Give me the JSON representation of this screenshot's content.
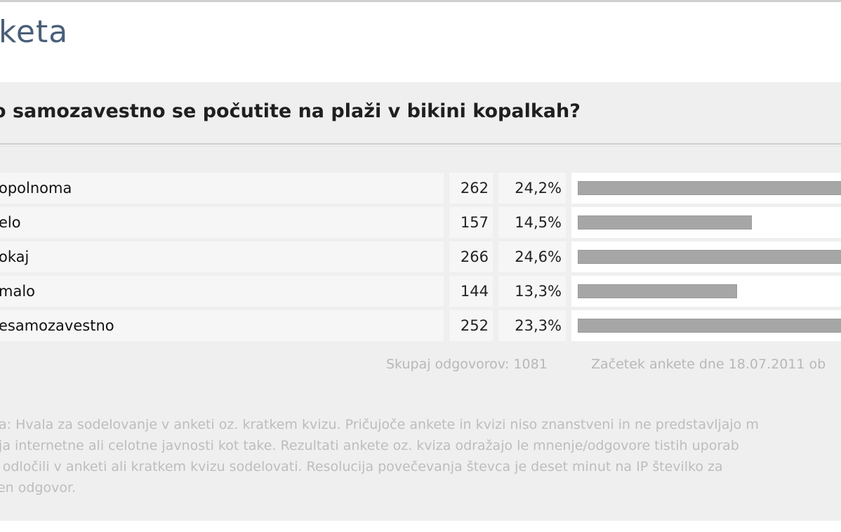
{
  "poll": {
    "heading": "keta",
    "question": "o samozavestno se počutite na plaži v bikini kopalkah?",
    "answers": [
      {
        "label": "opolnoma",
        "count": "262",
        "percent": "24,2%",
        "fraction": 0.242
      },
      {
        "label": "elo",
        "count": "157",
        "percent": "14,5%",
        "fraction": 0.145
      },
      {
        "label": "okaj",
        "count": "266",
        "percent": "24,6%",
        "fraction": 0.246
      },
      {
        "label": "malo",
        "count": "144",
        "percent": "13,3%",
        "fraction": 0.133
      },
      {
        "label": "esamozavestno",
        "count": "252",
        "percent": "23,3%",
        "fraction": 0.233
      }
    ],
    "total": "Skupaj odgovorov: 1081",
    "start": "Začetek ankete dne 18.07.2011 ob",
    "note_lines": [
      "ba: Hvala za sodelovanje v anketi oz. kratkem kvizu. Pričujoče ankete in kvizi niso znanstveni in ne predstavljajo m",
      "nja internetne ali celotne javnosti kot take. Rezultati ankete oz. kviza odražajo le mnenje/odgovore tistih uporab",
      "e odločili v anketi ali kratkem kvizu sodelovati. Resolucija povečevanja števca je deset minut na IP številko za",
      "zen odgovor."
    ],
    "colors": {
      "bar": "#a6a6a6",
      "panel": "#efefef",
      "heading": "#4a5f78"
    }
  }
}
